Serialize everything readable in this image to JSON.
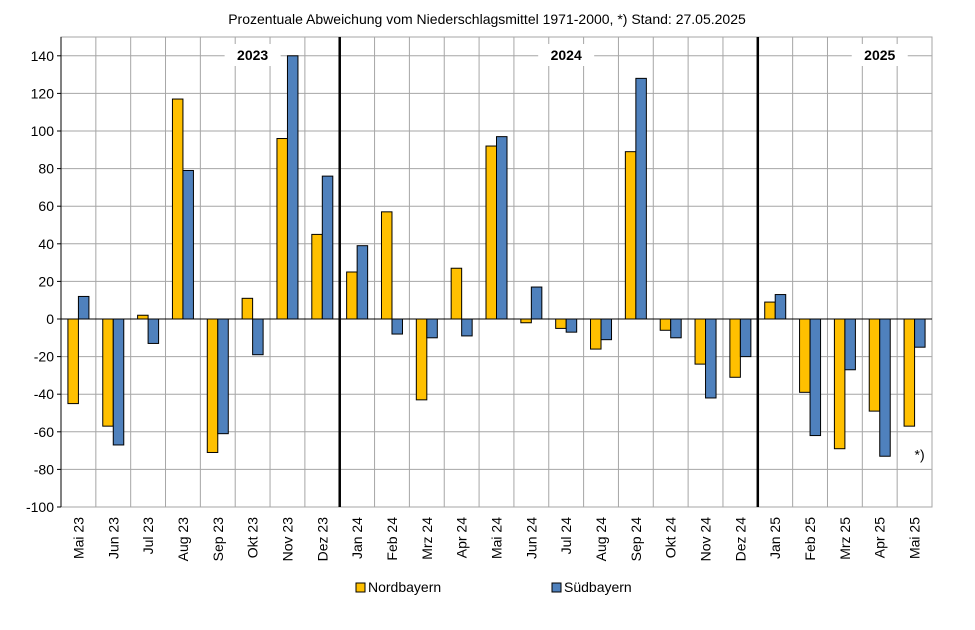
{
  "colors": {
    "nordbayern": "#FFC000",
    "suedbayern": "#4F81BD",
    "grid": "#A6A6A6",
    "separator": "#000000"
  },
  "chart_data": {
    "type": "bar",
    "title": "Prozentuale Abweichung vom Niederschlagsmittel 1971-2000,  *) Stand:  27.05.2025",
    "xlabel": "",
    "ylabel": "",
    "ylim": [
      -100,
      150
    ],
    "yticks": [
      140,
      120,
      100,
      80,
      60,
      40,
      20,
      0,
      -20,
      -40,
      -60,
      -80,
      -100
    ],
    "grid": true,
    "legend_position": "bottom",
    "categories": [
      "Mai 23",
      "Jun 23",
      "Jul 23",
      "Aug 23",
      "Sep 23",
      "Okt 23",
      "Nov 23",
      "Dez 23",
      "Jan 24",
      "Feb 24",
      "Mrz 24",
      "Apr 24",
      "Mai 24",
      "Jun 24",
      "Jul 24",
      "Aug 24",
      "Sep 24",
      "Okt 24",
      "Nov 24",
      "Dez 24",
      "Jan 25",
      "Feb 25",
      "Mrz 25",
      "Apr 25",
      "Mai 25"
    ],
    "series": [
      {
        "name": "Nordbayern",
        "values": [
          -45,
          -57,
          2,
          117,
          -71,
          11,
          96,
          45,
          25,
          57,
          -43,
          27,
          92,
          -2,
          -5,
          -16,
          89,
          -6,
          -24,
          -31,
          9,
          -39,
          -69,
          -49,
          -57
        ]
      },
      {
        "name": "Südbayern",
        "values": [
          12,
          -67,
          -13,
          79,
          -61,
          -19,
          140,
          76,
          39,
          -8,
          -10,
          -9,
          97,
          17,
          -7,
          -11,
          128,
          -10,
          -42,
          -20,
          13,
          -62,
          -27,
          -73,
          -15
        ]
      }
    ],
    "year_labels": [
      {
        "label": "2023",
        "category_index": 5
      },
      {
        "label": "2024",
        "category_index": 14
      },
      {
        "label": "2025",
        "category_index": 23
      }
    ],
    "year_separators_after": [
      7,
      19
    ],
    "annotation": {
      "text": "*)",
      "category_index": 24,
      "y": -72
    }
  }
}
